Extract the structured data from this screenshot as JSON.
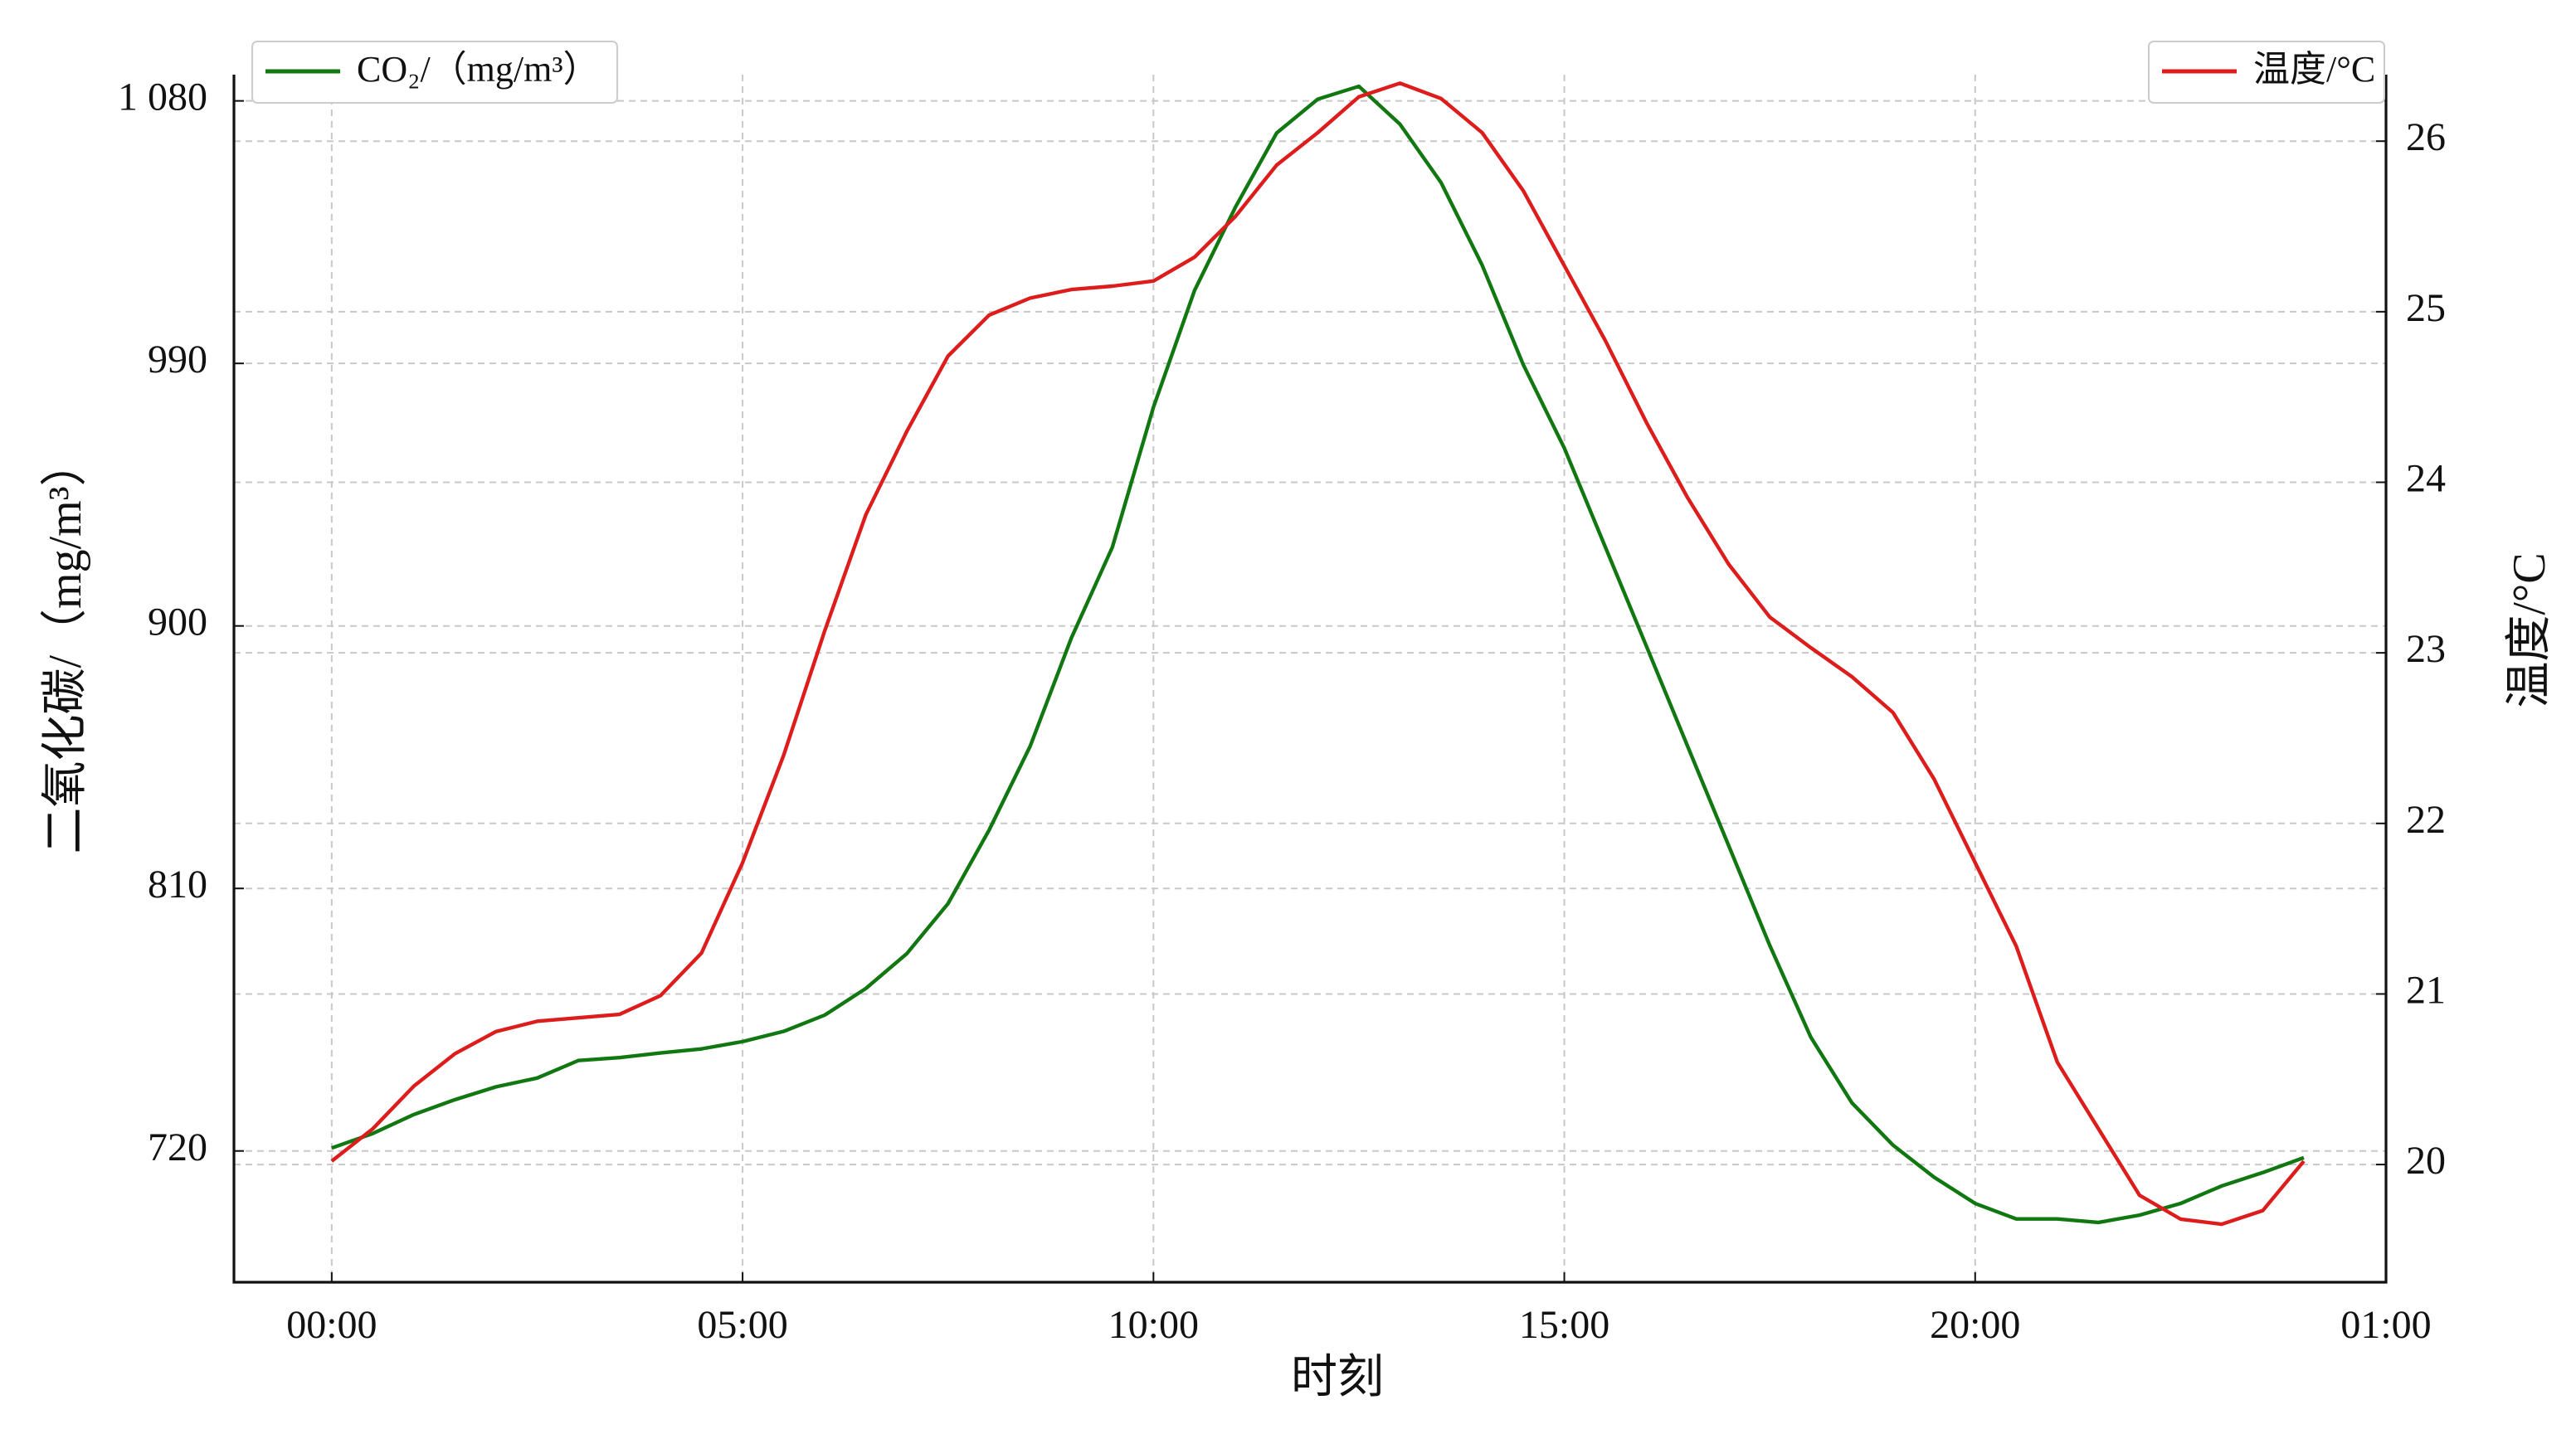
{
  "chart_data": {
    "type": "line",
    "x_label": "时刻",
    "y_label": "二氧化碳/（mg/m³）",
    "y2_label": "温度/°C",
    "x": [
      0,
      0.5,
      1,
      1.5,
      2,
      2.5,
      3,
      3.5,
      4,
      4.5,
      5,
      5.5,
      6,
      6.5,
      7,
      7.5,
      8,
      8.5,
      9,
      9.5,
      10,
      10.5,
      11,
      11.5,
      12,
      12.5,
      13,
      13.5,
      14,
      14.5,
      15,
      15.5,
      16,
      16.5,
      17,
      17.5,
      18,
      18.5,
      19,
      19.5,
      20,
      20.5,
      21,
      21.5,
      22,
      22.5,
      23,
      23.5,
      24
    ],
    "xlim": [
      -1.19,
      25
    ],
    "xticks": [
      {
        "value": 0,
        "label": "00:00"
      },
      {
        "value": 5,
        "label": "05:00"
      },
      {
        "value": 10,
        "label": "10:00"
      },
      {
        "value": 15,
        "label": "15:00"
      },
      {
        "value": 20,
        "label": "20:00"
      },
      {
        "value": 25,
        "label": "01:00"
      }
    ],
    "ylim": [
      675,
      1089
    ],
    "yticks": [
      720,
      810,
      900,
      990,
      {
        "value": 1080,
        "label": "1 080"
      }
    ],
    "y2lim": [
      19.31,
      26.39
    ],
    "y2ticks": [
      20,
      21,
      22,
      23,
      24,
      25,
      26
    ],
    "grid": true,
    "series": [
      {
        "name": "CO₂/（mg/m³）",
        "color": "#117711",
        "legend": "upper left",
        "values": [
          721,
          726,
          732.5,
          737.6,
          742,
          745,
          751,
          752,
          753.6,
          755,
          757.5,
          761,
          766.6,
          775.7,
          787.7,
          804.8,
          830,
          858.8,
          895.8,
          927,
          975,
          1015,
          1043.7,
          1069,
          1080.6,
          1085,
          1072,
          1052,
          1023.7,
          989.6,
          961,
          927,
          893,
          858.8,
          824.7,
          790.5,
          759,
          736.5,
          722,
          711,
          702,
          696.7,
          696.7,
          695.5,
          698,
          702,
          708,
          712.6,
          717.7
        ]
      },
      {
        "name": "温度/°C",
        "color": "#dd1c1c",
        "axis": "y2",
        "legend": "upper right",
        "values": [
          20.02,
          20.21,
          20.46,
          20.65,
          20.78,
          20.84,
          20.86,
          20.88,
          20.99,
          21.24,
          21.77,
          22.4,
          23.13,
          23.81,
          24.3,
          24.74,
          24.98,
          25.08,
          25.13,
          25.15,
          25.18,
          25.32,
          25.56,
          25.86,
          26.05,
          26.26,
          26.34,
          26.25,
          26.05,
          25.71,
          25.27,
          24.83,
          24.35,
          23.91,
          23.52,
          23.21,
          23.03,
          22.86,
          22.65,
          22.26,
          21.77,
          21.28,
          20.6,
          20.21,
          19.82,
          19.68,
          19.65,
          19.73,
          20.02
        ]
      }
    ]
  }
}
